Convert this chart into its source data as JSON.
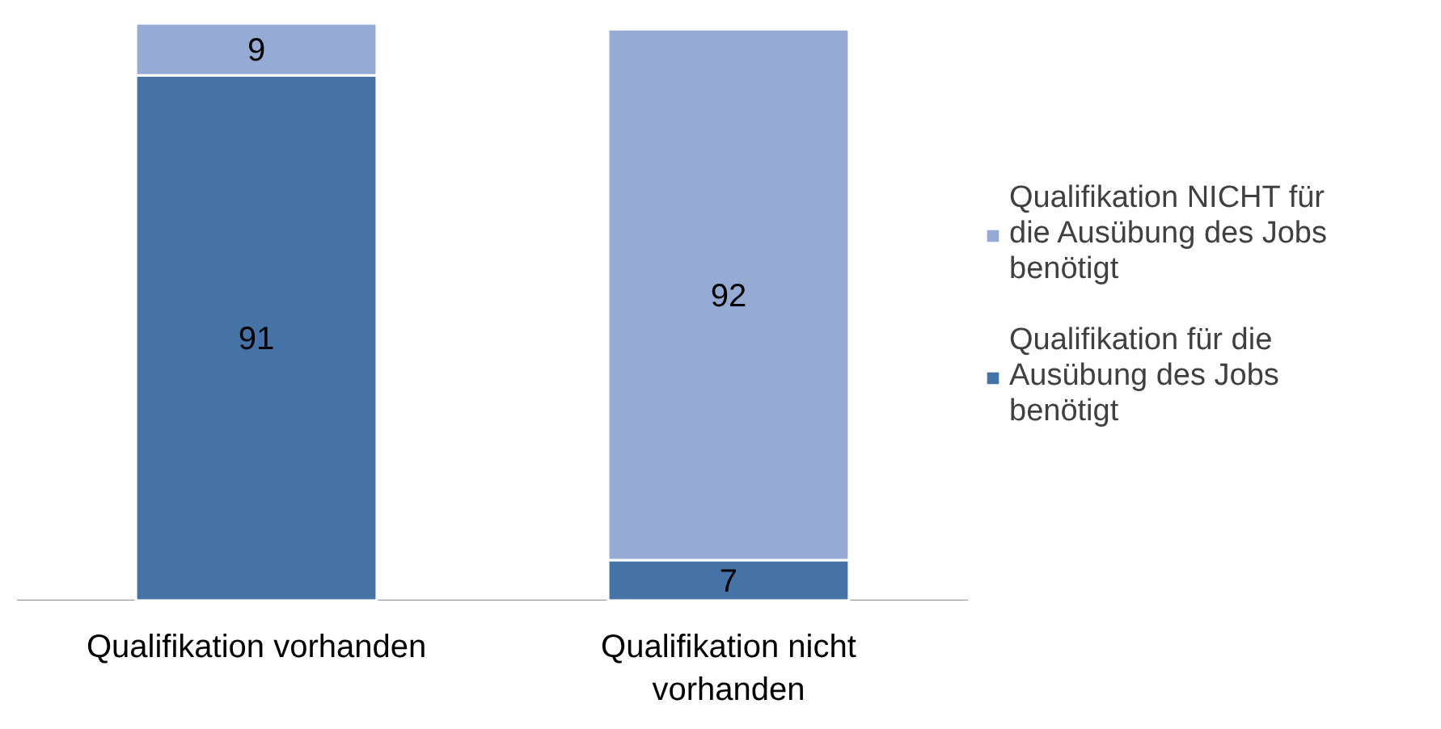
{
  "chart_data": {
    "type": "bar",
    "stacked": true,
    "data_labels": true,
    "legend": "right",
    "grid": false,
    "categories": [
      "Qualifikation vorhanden",
      "Qualifikation nicht vorhanden"
    ],
    "series": [
      {
        "name": "Qualifikation für die Ausübung des Jobs benötigt",
        "color": "#4673a7",
        "values": [
          91,
          7
        ]
      },
      {
        "name": "Qualifikation NICHT für die Ausübung des Jobs benötigt",
        "color": "#95abd3",
        "values": [
          9,
          92
        ]
      }
    ]
  }
}
